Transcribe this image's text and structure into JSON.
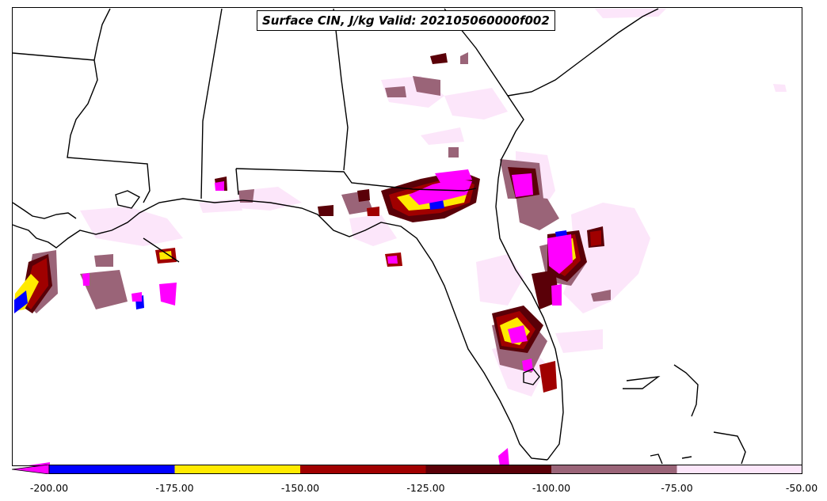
{
  "title": "Surface CIN, J/kg Valid: 202105060000f002",
  "colorbar": {
    "tick_labels": [
      "-200.00",
      "-175.00",
      "-150.00",
      "-125.00",
      "-100.00",
      "-75.00",
      "-50.00"
    ],
    "bins": [
      {
        "from": -200,
        "to": -175,
        "color": "#0000ff"
      },
      {
        "from": -175,
        "to": -150,
        "color": "#ffea00"
      },
      {
        "from": -150,
        "to": -125,
        "color": "#a00000"
      },
      {
        "from": -125,
        "to": -100,
        "color": "#5a0008"
      },
      {
        "from": -100,
        "to": -75,
        "color": "#9a6478"
      },
      {
        "from": -75,
        "to": -50,
        "color": "#fce6fa"
      }
    ],
    "under_color": "#ff00ff",
    "extend": "min"
  },
  "map": {
    "region": "US Southeast / Gulf of Mexico / Florida",
    "coastline_color": "#000000"
  }
}
